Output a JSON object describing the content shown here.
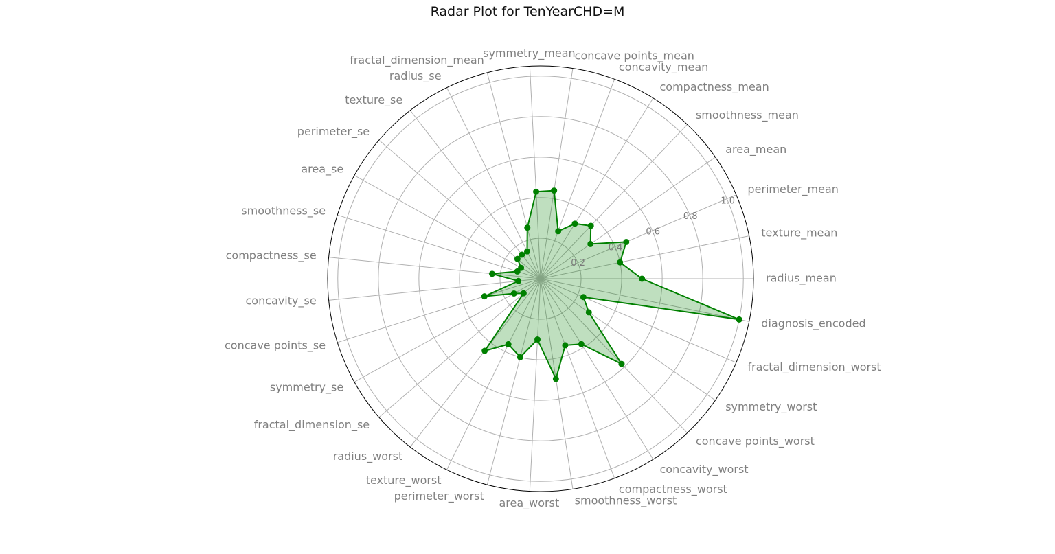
{
  "chart_data": {
    "type": "radar",
    "title": "Radar Plot for TenYearCHD=M",
    "categories": [
      "radius_mean",
      "texture_mean",
      "perimeter_mean",
      "area_mean",
      "smoothness_mean",
      "compactness_mean",
      "concavity_mean",
      "concave points_mean",
      "symmetry_mean",
      "fractal_dimension_mean",
      "radius_se",
      "texture_se",
      "perimeter_se",
      "area_se",
      "smoothness_se",
      "compactness_se",
      "concavity_se",
      "concave points_se",
      "symmetry_se",
      "fractal_dimension_se",
      "radius_worst",
      "texture_worst",
      "perimeter_worst",
      "area_worst",
      "smoothness_worst",
      "compactness_worst",
      "concavity_worst",
      "concave points_worst",
      "symmetry_worst",
      "fractal_dimension_worst",
      "diagnosis_encoded"
    ],
    "values": [
      0.5,
      0.4,
      0.46,
      0.3,
      0.36,
      0.32,
      0.25,
      0.44,
      0.43,
      0.26,
      0.15,
      0.15,
      0.15,
      0.11,
      0.12,
      0.24,
      0.11,
      0.29,
      0.15,
      0.11,
      0.45,
      0.36,
      0.4,
      0.3,
      0.5,
      0.35,
      0.38,
      0.58,
      0.29,
      0.23,
      1.0
    ],
    "rlim": [
      0,
      1.05
    ],
    "radial_ticks": [
      0.2,
      0.4,
      0.6,
      0.8,
      1.0
    ],
    "radial_tick_labels": [
      "0.2",
      "0.4",
      "0.6",
      "0.8",
      "1.0"
    ],
    "grid": true,
    "line_color": "#008000",
    "fill_color": "#008000",
    "fill_opacity": 0.25,
    "gridline_color": "#b0b0b0",
    "label_color": "#808080"
  }
}
